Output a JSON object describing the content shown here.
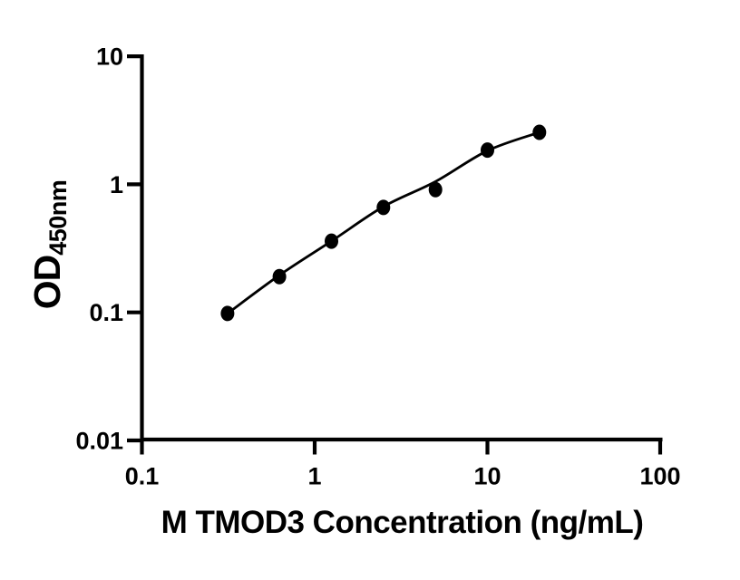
{
  "chart_data": {
    "type": "scatter",
    "subtype": "standard-curve-with-fit-line",
    "title": "",
    "xlabel": "M TMOD3 Concentration (ng/mL)",
    "ylabel": "OD450nm",
    "ylabel_main": "OD",
    "ylabel_sub": "450nm",
    "x_scale": "log10",
    "y_scale": "log10",
    "xlim": [
      0.1,
      100
    ],
    "ylim": [
      0.01,
      10
    ],
    "grid": false,
    "legend": "none",
    "x_ticks": [
      {
        "label": "0.1",
        "value": 0.1
      },
      {
        "label": "1",
        "value": 1
      },
      {
        "label": "10",
        "value": 10
      },
      {
        "label": "100",
        "value": 100
      }
    ],
    "y_ticks": [
      {
        "label": "10",
        "value": 10
      },
      {
        "label": "1",
        "value": 1
      },
      {
        "label": "0.1",
        "value": 0.1
      },
      {
        "label": "0.01",
        "value": 0.01
      }
    ],
    "points": {
      "x": [
        0.313,
        0.625,
        1.25,
        2.5,
        5,
        10,
        20
      ],
      "y": [
        0.098,
        0.19,
        0.36,
        0.66,
        0.91,
        1.85,
        2.55
      ]
    },
    "fit_curve": {
      "x": [
        0.313,
        0.625,
        1.25,
        2.5,
        5,
        10,
        20
      ],
      "y": [
        0.098,
        0.195,
        0.36,
        0.67,
        1.05,
        1.83,
        2.55
      ]
    },
    "colors": {
      "ink": "#000000",
      "background": "#ffffff",
      "marker": "#000000",
      "line": "#000000"
    }
  }
}
